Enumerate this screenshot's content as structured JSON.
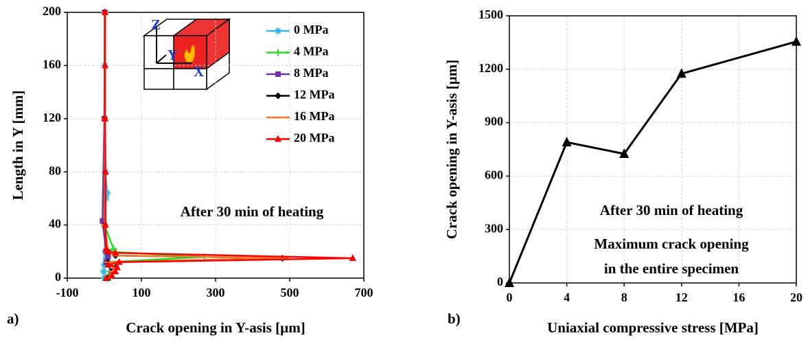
{
  "chart_data": [
    {
      "type": "line",
      "panel_label": "a)",
      "x_label": "Crack opening in Y-asis [µm]",
      "y_label": "Length in Y [mm]",
      "annotation": "After 30 min of heating",
      "inset_labels": [
        "Z",
        "Y",
        "X"
      ],
      "xlim": [
        -100,
        700
      ],
      "xticks": [
        -100,
        100,
        300,
        500,
        700
      ],
      "ylim": [
        0,
        200
      ],
      "yticks": [
        0,
        40,
        80,
        120,
        160,
        200
      ],
      "grid": true,
      "legend": "upper right",
      "series": [
        {
          "name": "0 MPa",
          "color": "#33b5e5",
          "marker": "star",
          "x": [
            2,
            1,
            0,
            3,
            8,
            5,
            1,
            2,
            4,
            0,
            -2,
            0
          ],
          "values": [
            200,
            160,
            120,
            80,
            64,
            60,
            40,
            20,
            15,
            10,
            5,
            0
          ]
        },
        {
          "name": "4 MPa",
          "color": "#22dd22",
          "marker": "plus",
          "x": [
            2,
            1,
            0,
            25,
            8,
            270,
            10,
            30,
            15,
            5
          ],
          "values": [
            200,
            120,
            40,
            22,
            20,
            16,
            12,
            8,
            5,
            0
          ]
        },
        {
          "name": "8 MPa",
          "color": "#7030a0",
          "marker": "square",
          "x": [
            1,
            0,
            -5,
            5,
            10,
            5,
            20,
            10
          ],
          "values": [
            200,
            120,
            43,
            20,
            16,
            12,
            5,
            0
          ]
        },
        {
          "name": "12 MPa",
          "color": "#000000",
          "marker": "diamond",
          "x": [
            1,
            1,
            1,
            10,
            30,
            480,
            10,
            30,
            20,
            10
          ],
          "values": [
            200,
            120,
            40,
            20,
            17,
            15,
            12,
            8,
            5,
            0
          ]
        },
        {
          "name": "16 MPa",
          "color": "#ed7d31",
          "marker": "dash",
          "x": [
            1,
            1,
            1,
            10,
            30,
            490,
            10,
            30,
            20,
            10
          ],
          "values": [
            200,
            120,
            40,
            20,
            17,
            15,
            12,
            8,
            5,
            0
          ]
        },
        {
          "name": "20 MPa",
          "color": "#ff0000",
          "marker": "triangle",
          "x": [
            2,
            2,
            2,
            3,
            3,
            5,
            10,
            30,
            670,
            40,
            10,
            35,
            30,
            20,
            5
          ],
          "values": [
            200,
            160,
            120,
            80,
            40,
            22,
            20,
            19,
            15,
            12,
            10,
            8,
            5,
            2,
            0
          ]
        }
      ]
    },
    {
      "type": "line",
      "panel_label": "b)",
      "x_label": "Uniaxial compressive stress [MPa]",
      "y_label": "Crack opening in Y-asis [µm]",
      "annotations": [
        "After 30 min of heating",
        "Maximum crack opening",
        "in the entire specimen"
      ],
      "xlim": [
        0,
        20
      ],
      "xticks": [
        0,
        4,
        8,
        12,
        16,
        20
      ],
      "ylim": [
        0,
        1500
      ],
      "yticks": [
        0,
        300,
        600,
        900,
        1200,
        1500
      ],
      "grid": true,
      "x": [
        0,
        4,
        8,
        12,
        20
      ],
      "series": [
        {
          "color": "#000000",
          "marker": "triangle",
          "values": [
            0,
            790,
            725,
            1175,
            1355
          ]
        }
      ]
    }
  ]
}
